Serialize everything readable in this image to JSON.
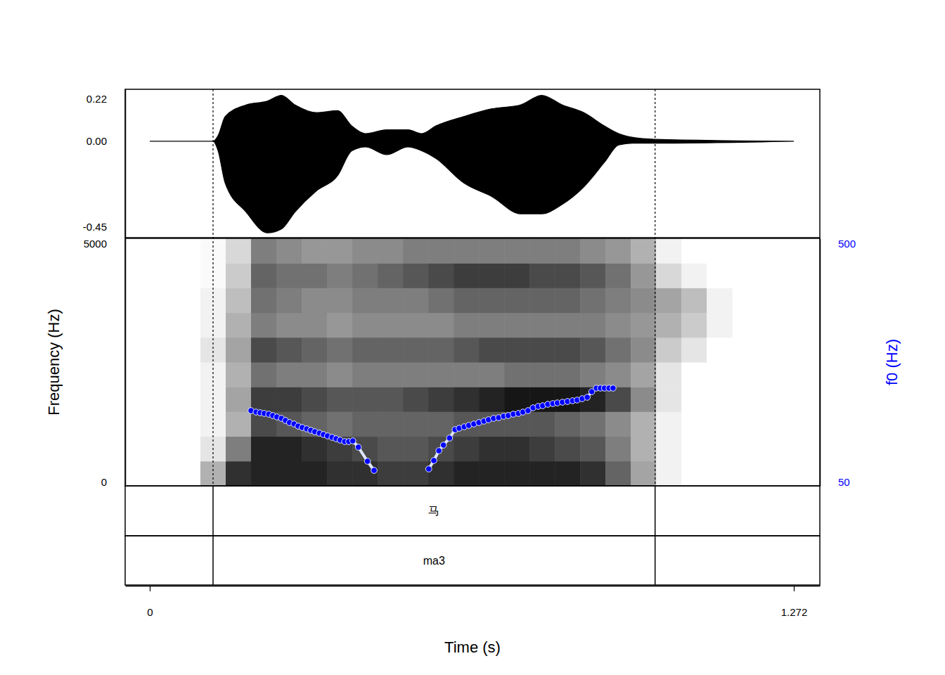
{
  "chart_data": {
    "type": "spectrogram",
    "xlabel": "Time (s)",
    "ylabel": "Frequency (Hz)",
    "y2label": "f0 (Hz)",
    "xlim": [
      -0.0486,
      1.3234
    ],
    "xticks": [
      0,
      1.272
    ],
    "ylim": [
      0,
      5000
    ],
    "yticks": [
      0,
      5000
    ],
    "y2lim": [
      50,
      500
    ],
    "y2ticks": [
      50,
      500
    ],
    "waveform": {
      "ylim": [
        -0.505,
        0.272
      ],
      "yticks": [
        {
          "value": -0.45,
          "label": "-0.45"
        },
        {
          "value": 0,
          "label": "0.00"
        },
        0.22
      ],
      "t": [
        0,
        0.125,
        0.135,
        0.149,
        0.19,
        0.232,
        0.26,
        0.287,
        0.329,
        0.371,
        0.399,
        0.426,
        0.468,
        0.51,
        0.537,
        0.565,
        0.621,
        0.676,
        0.732,
        0.774,
        0.815,
        0.857,
        0.898,
        0.926,
        0.954,
        0.998,
        1.272
      ],
      "upper": [
        0,
        0,
        0.03,
        0.13,
        0.19,
        0.21,
        0.24,
        0.19,
        0.15,
        0.16,
        0.08,
        0.04,
        0.06,
        0.06,
        0.04,
        0.08,
        0.13,
        0.17,
        0.19,
        0.24,
        0.19,
        0.15,
        0.08,
        0.04,
        0.02,
        0.01,
        0
      ],
      "lower": [
        0,
        0,
        -0.05,
        -0.22,
        -0.37,
        -0.48,
        -0.46,
        -0.37,
        -0.26,
        -0.18,
        -0.05,
        -0.03,
        -0.07,
        -0.03,
        -0.05,
        -0.09,
        -0.22,
        -0.29,
        -0.38,
        -0.38,
        -0.33,
        -0.24,
        -0.11,
        -0.02,
        -0.01,
        -0.01,
        0
      ]
    },
    "spectrogram": {
      "t_edges": [
        0.1,
        0.15,
        0.2,
        0.25,
        0.3,
        0.35,
        0.4,
        0.45,
        0.5,
        0.55,
        0.6,
        0.65,
        0.7,
        0.75,
        0.8,
        0.85,
        0.9,
        0.95,
        1.0,
        1.05,
        1.1,
        1.15
      ],
      "f_edges": [
        0,
        500,
        1000,
        1500,
        2000,
        2500,
        3000,
        3500,
        4000,
        4500,
        5000
      ],
      "cells": [
        [
          0.3,
          0.8,
          0.85,
          0.85,
          0.85,
          0.8,
          0.8,
          0.75,
          0.75,
          0.8,
          0.85,
          0.85,
          0.85,
          0.85,
          0.85,
          0.8,
          0.6,
          0.35,
          0.05,
          0,
          0
        ],
        [
          0.1,
          0.5,
          0.85,
          0.85,
          0.8,
          0.75,
          0.7,
          0.65,
          0.65,
          0.7,
          0.75,
          0.8,
          0.8,
          0.75,
          0.7,
          0.65,
          0.5,
          0.3,
          0.05,
          0,
          0
        ],
        [
          0.05,
          0.3,
          0.7,
          0.65,
          0.6,
          0.55,
          0.6,
          0.6,
          0.6,
          0.6,
          0.65,
          0.65,
          0.65,
          0.65,
          0.6,
          0.55,
          0.45,
          0.3,
          0.05,
          0,
          0
        ],
        [
          0.05,
          0.35,
          0.75,
          0.75,
          0.7,
          0.65,
          0.65,
          0.65,
          0.7,
          0.75,
          0.8,
          0.85,
          0.9,
          0.9,
          0.9,
          0.85,
          0.7,
          0.45,
          0.1,
          0,
          0
        ],
        [
          0.05,
          0.3,
          0.55,
          0.5,
          0.5,
          0.45,
          0.5,
          0.5,
          0.5,
          0.5,
          0.5,
          0.5,
          0.55,
          0.55,
          0.55,
          0.5,
          0.45,
          0.35,
          0.1,
          0,
          0
        ],
        [
          0.1,
          0.35,
          0.7,
          0.65,
          0.6,
          0.55,
          0.6,
          0.6,
          0.6,
          0.6,
          0.65,
          0.7,
          0.7,
          0.7,
          0.7,
          0.65,
          0.55,
          0.45,
          0.2,
          0.1,
          0
        ],
        [
          0.05,
          0.3,
          0.5,
          0.45,
          0.45,
          0.4,
          0.45,
          0.45,
          0.45,
          0.45,
          0.5,
          0.5,
          0.5,
          0.5,
          0.5,
          0.5,
          0.45,
          0.4,
          0.3,
          0.2,
          0.05
        ],
        [
          0.05,
          0.25,
          0.55,
          0.5,
          0.45,
          0.45,
          0.5,
          0.5,
          0.5,
          0.55,
          0.6,
          0.6,
          0.6,
          0.6,
          0.6,
          0.55,
          0.5,
          0.45,
          0.35,
          0.25,
          0.05
        ],
        [
          0.02,
          0.2,
          0.6,
          0.55,
          0.55,
          0.5,
          0.55,
          0.6,
          0.65,
          0.7,
          0.75,
          0.75,
          0.75,
          0.7,
          0.7,
          0.65,
          0.55,
          0.4,
          0.15,
          0.05,
          0
        ],
        [
          0.02,
          0.15,
          0.5,
          0.45,
          0.4,
          0.4,
          0.45,
          0.45,
          0.5,
          0.5,
          0.5,
          0.5,
          0.5,
          0.5,
          0.5,
          0.45,
          0.4,
          0.3,
          0.05,
          0,
          0
        ]
      ]
    },
    "f0": {
      "axis": "y2",
      "color": "#0000ff",
      "marker": "circle",
      "x": [
        0.2,
        0.21,
        0.218,
        0.226,
        0.235,
        0.243,
        0.251,
        0.26,
        0.268,
        0.276,
        0.285,
        0.293,
        0.301,
        0.31,
        0.318,
        0.326,
        0.335,
        0.343,
        0.351,
        0.36,
        0.368,
        0.376,
        0.385,
        0.393,
        0.401,
        0.412,
        0.43,
        0.443,
        0.5,
        0.551,
        0.561,
        0.571,
        0.58,
        0.592,
        0.603,
        0.611,
        0.621,
        0.63,
        0.64,
        0.65,
        0.66,
        0.669,
        0.679,
        0.689,
        0.699,
        0.708,
        0.718,
        0.728,
        0.737,
        0.747,
        0.757,
        0.767,
        0.776,
        0.786,
        0.796,
        0.805,
        0.815,
        0.825,
        0.835,
        0.844,
        0.854,
        0.864,
        0.873,
        0.882,
        0.89,
        0.898,
        0.907,
        0.915
      ],
      "values": [
        186.8,
        184.2,
        183.0,
        181.7,
        180.4,
        177.8,
        175.3,
        172.7,
        168.9,
        165.1,
        162.5,
        158.7,
        156.1,
        153.6,
        151.0,
        148.4,
        145.9,
        143.3,
        140.8,
        138.2,
        135.7,
        133.1,
        130.5,
        130.5,
        131.8,
        120.3,
        94.7,
        78.1,
        null,
        80.7,
        96.0,
        113.9,
        124.1,
        136.9,
        152.3,
        154.8,
        157.4,
        159.9,
        162.5,
        165.1,
        167.6,
        170.2,
        172.7,
        174.0,
        176.6,
        177.8,
        180.4,
        181.7,
        184.2,
        186.8,
        191.9,
        194.5,
        195.7,
        198.3,
        199.6,
        200.8,
        202.1,
        203.4,
        204.7,
        206.0,
        208.5,
        211.1,
        221.3,
        227.7,
        227.7,
        227.7,
        227.7,
        227.7
      ]
    },
    "tiers": [
      {
        "intervals": [
          {
            "start": 0.125,
            "end": 0.998,
            "text": "马"
          }
        ]
      },
      {
        "intervals": [
          {
            "start": 0.125,
            "end": 0.998,
            "text": "ma3"
          }
        ]
      }
    ]
  }
}
